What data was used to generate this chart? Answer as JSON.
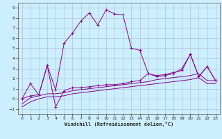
{
  "background_color": "#cceeff",
  "grid_color": "#aabbcc",
  "line_color": "#880088",
  "xlabel": "Windchill (Refroidissement éolien,°C)",
  "xlim": [
    -0.5,
    23.5
  ],
  "ylim": [
    -1.5,
    9.5
  ],
  "xticks": [
    0,
    1,
    2,
    3,
    4,
    5,
    6,
    7,
    8,
    9,
    10,
    11,
    12,
    13,
    14,
    15,
    16,
    17,
    18,
    19,
    20,
    21,
    22,
    23
  ],
  "yticks": [
    -1,
    0,
    1,
    2,
    3,
    4,
    5,
    6,
    7,
    8,
    9
  ],
  "line1_y": [
    0.0,
    1.5,
    0.4,
    3.3,
    0.9,
    5.5,
    6.5,
    7.7,
    8.5,
    7.3,
    8.8,
    8.4,
    8.3,
    5.0,
    4.8,
    2.5,
    2.2,
    2.3,
    2.5,
    3.0,
    4.4,
    2.2,
    3.2,
    1.8
  ],
  "line2_y": [
    0.0,
    0.3,
    0.4,
    3.3,
    -0.8,
    0.8,
    1.1,
    1.1,
    1.2,
    1.3,
    1.4,
    1.4,
    1.5,
    1.7,
    1.8,
    2.5,
    2.3,
    2.4,
    2.6,
    2.8,
    4.4,
    2.2,
    3.2,
    1.8
  ],
  "line3_y": [
    -0.5,
    0.1,
    0.3,
    0.5,
    0.5,
    0.6,
    0.8,
    0.9,
    1.0,
    1.1,
    1.2,
    1.3,
    1.4,
    1.5,
    1.6,
    1.7,
    1.9,
    2.0,
    2.1,
    2.2,
    2.3,
    2.5,
    1.8,
    1.8
  ],
  "line4_y": [
    -0.8,
    -0.3,
    0.0,
    0.2,
    0.2,
    0.3,
    0.5,
    0.6,
    0.7,
    0.8,
    0.9,
    1.0,
    1.1,
    1.2,
    1.3,
    1.4,
    1.5,
    1.6,
    1.7,
    1.8,
    1.9,
    2.1,
    1.5,
    1.5
  ]
}
